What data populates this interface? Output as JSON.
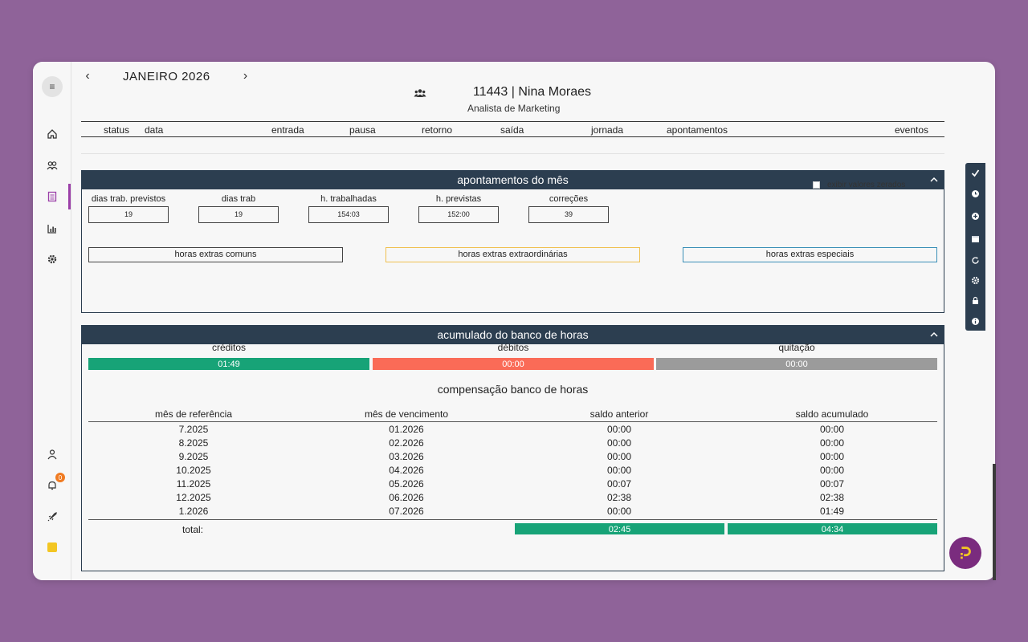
{
  "nav": {
    "prev": "‹",
    "month": "JANEIRO 2026",
    "next": "›"
  },
  "employee": {
    "name": "11443 | Nina Moraes",
    "role": "Analista de Marketing"
  },
  "columns": [
    "status",
    "data",
    "entrada",
    "pausa",
    "retorno",
    "saída",
    "jornada",
    "apontamentos",
    "eventos"
  ],
  "sidebar": {
    "menu": "≡",
    "notif_count": "0"
  },
  "apontamentos": {
    "title": "apontamentos do mês",
    "show_zero": "exibir valores zerados",
    "stats": [
      {
        "label": "dias trab. previstos",
        "value": "19"
      },
      {
        "label": "dias trab",
        "value": "19"
      },
      {
        "label": "h. trabalhadas",
        "value": "154:03"
      },
      {
        "label": "h. previstas",
        "value": "152:00"
      },
      {
        "label": "correções",
        "value": "39"
      }
    ],
    "buttons": {
      "comuns": "horas extras comuns",
      "extraordinarias": "horas extras extraordinárias",
      "especiais": "horas extras especiais"
    }
  },
  "banco": {
    "title": "acumulado do banco de horas",
    "creditos_label": "créditos",
    "creditos": "01:49",
    "debitos_label": "débitos",
    "debitos": "00:00",
    "quitacao_label": "quitação",
    "quitacao": "00:00",
    "comp_title": "compensação banco de horas",
    "headers": [
      "mês de referência",
      "mês de vencimento",
      "saldo anterior",
      "saldo acumulado"
    ],
    "rows": [
      [
        "7.2025",
        "01.2026",
        "00:00",
        "00:00"
      ],
      [
        "8.2025",
        "02.2026",
        "00:00",
        "00:00"
      ],
      [
        "9.2025",
        "03.2026",
        "00:00",
        "00:00"
      ],
      [
        "10.2025",
        "04.2026",
        "00:00",
        "00:00"
      ],
      [
        "11.2025",
        "05.2026",
        "00:07",
        "00:07"
      ],
      [
        "12.2025",
        "06.2026",
        "02:38",
        "02:38"
      ],
      [
        "1.2026",
        "07.2026",
        "00:00",
        "01:49"
      ]
    ],
    "total_label": "total:",
    "total_anterior": "02:45",
    "total_acumulado": "04:34"
  },
  "colors": {
    "header": "#2c3e50",
    "green": "#17a377",
    "red": "#fa6b57",
    "gray": "#9b9b9b",
    "accent": "#9b3fa8",
    "yellow": "#f3c623",
    "teal": "#3a8fb7"
  }
}
